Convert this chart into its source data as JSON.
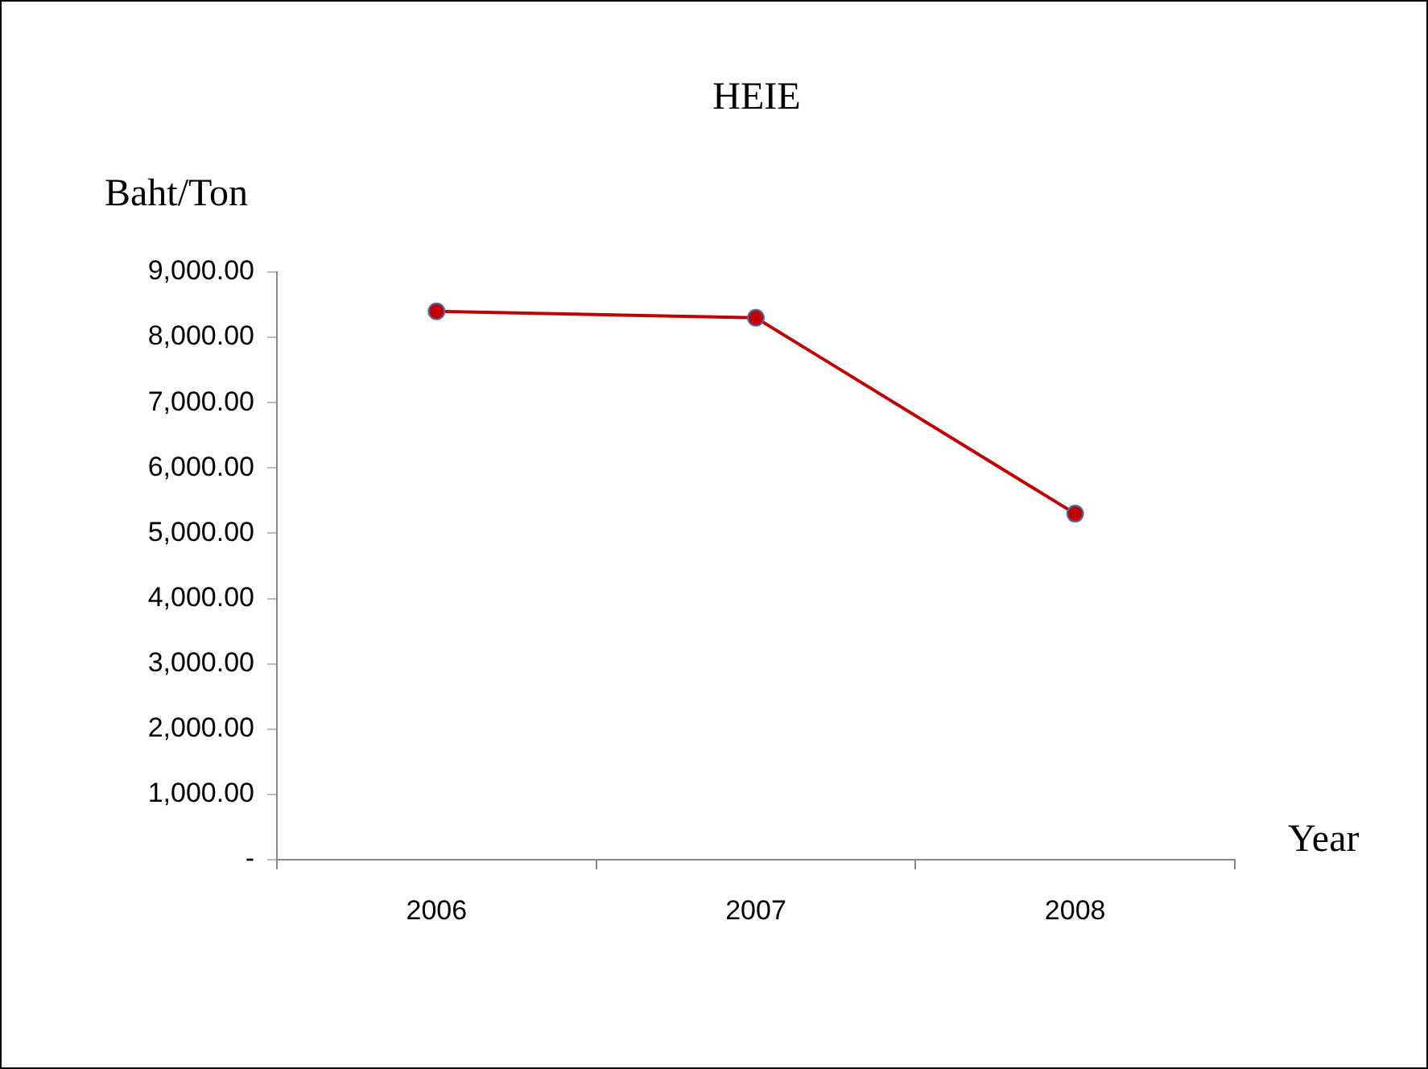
{
  "chart_data": {
    "type": "line",
    "title": "HEIE",
    "xlabel": "Year",
    "ylabel": "Baht/Ton",
    "categories": [
      "2006",
      "2007",
      "2008"
    ],
    "series": [
      {
        "color": "#c00000",
        "values": [
          8400,
          8300,
          5300
        ]
      }
    ],
    "ylim": [
      0,
      9000
    ],
    "yticks": [
      {
        "value": 0,
        "label": "-"
      },
      {
        "value": 1000,
        "label": "1,000.00"
      },
      {
        "value": 2000,
        "label": "2,000.00"
      },
      {
        "value": 3000,
        "label": "3,000.00"
      },
      {
        "value": 4000,
        "label": "4,000.00"
      },
      {
        "value": 5000,
        "label": "5,000.00"
      },
      {
        "value": 6000,
        "label": "6,000.00"
      },
      {
        "value": 7000,
        "label": "7,000.00"
      },
      {
        "value": 8000,
        "label": "8,000.00"
      },
      {
        "value": 9000,
        "label": "9,000.00"
      }
    ],
    "grid": false,
    "legend": false,
    "marker": "circle",
    "line_style": "solid"
  }
}
